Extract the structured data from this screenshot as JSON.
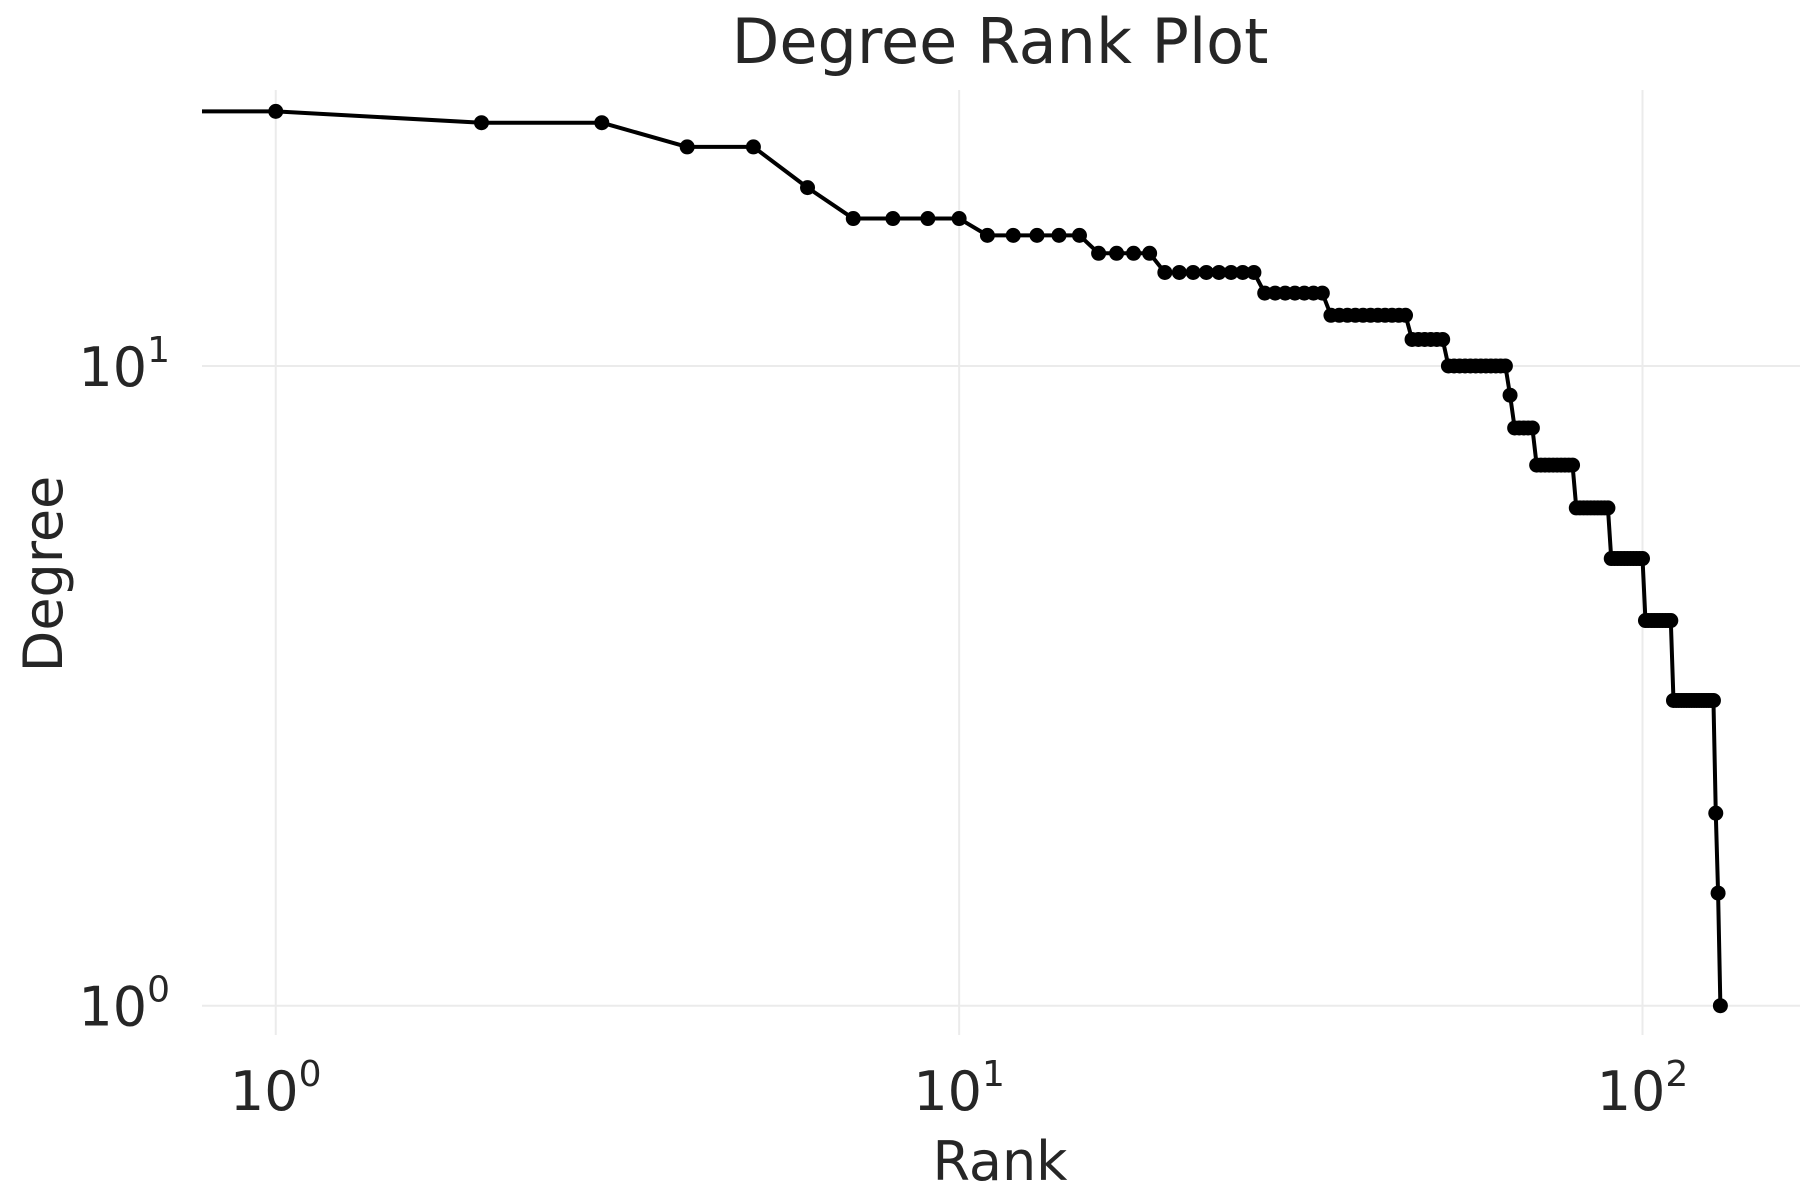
{
  "chart_data": {
    "type": "line",
    "title": "Degree Rank Plot",
    "xlabel": "Rank",
    "ylabel": "Degree",
    "x_scale": "log",
    "y_scale": "log",
    "xlim": [
      0.78,
      170
    ],
    "ylim": [
      0.9,
      27
    ],
    "grid": true,
    "x_ticks": [
      {
        "value": 1,
        "base": "10",
        "exp": "0"
      },
      {
        "value": 10,
        "base": "10",
        "exp": "1"
      },
      {
        "value": 100,
        "base": "10",
        "exp": "2"
      }
    ],
    "y_ticks": [
      {
        "value": 1,
        "base": "10",
        "exp": "0"
      },
      {
        "value": 10,
        "base": "10",
        "exp": "1"
      }
    ],
    "marker": "circle",
    "line_color": "#000000",
    "grid_color": "#ebebeb",
    "text_color": "#262626",
    "degree_runs": [
      [
        25,
        1
      ],
      [
        24,
        2
      ],
      [
        22,
        2
      ],
      [
        19,
        1
      ],
      [
        17,
        4
      ],
      [
        16,
        5
      ],
      [
        15,
        4
      ],
      [
        14,
        8
      ],
      [
        13,
        7
      ],
      [
        12,
        11
      ],
      [
        11,
        6
      ],
      [
        10,
        12
      ],
      [
        9,
        1
      ],
      [
        8,
        5
      ],
      [
        7,
        10
      ],
      [
        6,
        10
      ],
      [
        5,
        11
      ],
      [
        4,
        10
      ],
      [
        3,
        17
      ],
      [
        2,
        1
      ],
      [
        1.5,
        1
      ],
      [
        1,
        1
      ]
    ]
  }
}
